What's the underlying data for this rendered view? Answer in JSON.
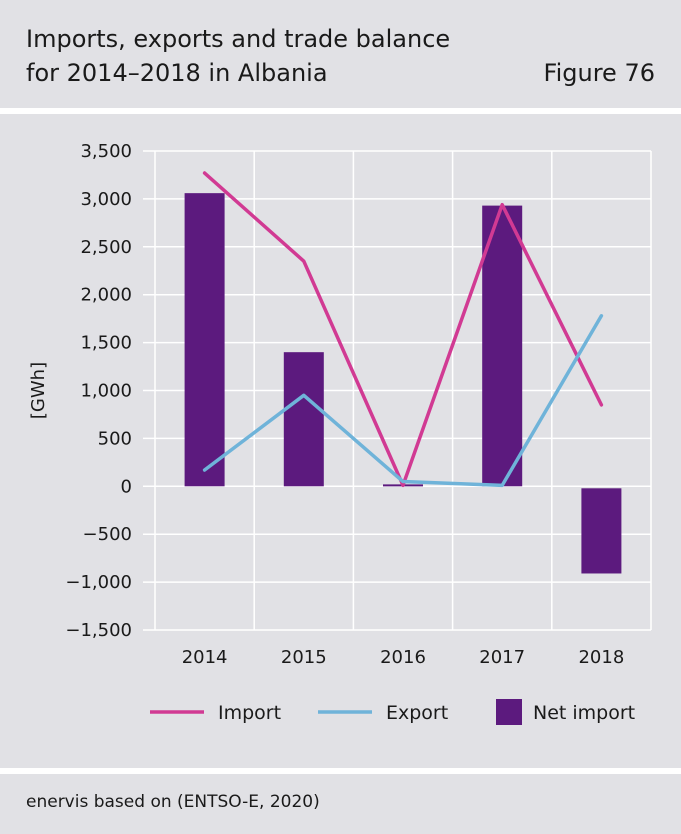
{
  "header": {
    "title_line1": "Imports, exports and trade balance",
    "title_line2": "for 2014–2018 in Albania",
    "figure": "Figure 76"
  },
  "source": "enervis based on (ENTSO-E, 2020)",
  "colors": {
    "background": "#e1e1e5",
    "import": "#d13a93",
    "export": "#6fb3d9",
    "net_import": "#5c1a7e",
    "grid": "#ffffff"
  },
  "chart_data": {
    "type": "bar",
    "categories": [
      "2014",
      "2015",
      "2016",
      "2017",
      "2018"
    ],
    "series": [
      {
        "name": "Net import",
        "kind": "bar",
        "values": [
          3060,
          1400,
          20,
          2930,
          -910
        ]
      },
      {
        "name": "Import",
        "kind": "line",
        "values": [
          3270,
          2350,
          10,
          2940,
          850
        ]
      },
      {
        "name": "Export",
        "kind": "line",
        "values": [
          170,
          950,
          50,
          10,
          1780
        ]
      }
    ],
    "ylabel": "[GWh]",
    "ylim": [
      -1500,
      3500
    ],
    "yticks": [
      3500,
      3000,
      2500,
      2000,
      1500,
      1000,
      500,
      0,
      -500,
      -1000,
      -1500
    ],
    "ytick_labels": [
      "3,500",
      "3,000",
      "2,500",
      "2,000",
      "1,500",
      "1,000",
      "500",
      "0",
      "−500",
      "−1,000",
      "−1,500"
    ],
    "grid": true,
    "legend_position": "bottom"
  }
}
